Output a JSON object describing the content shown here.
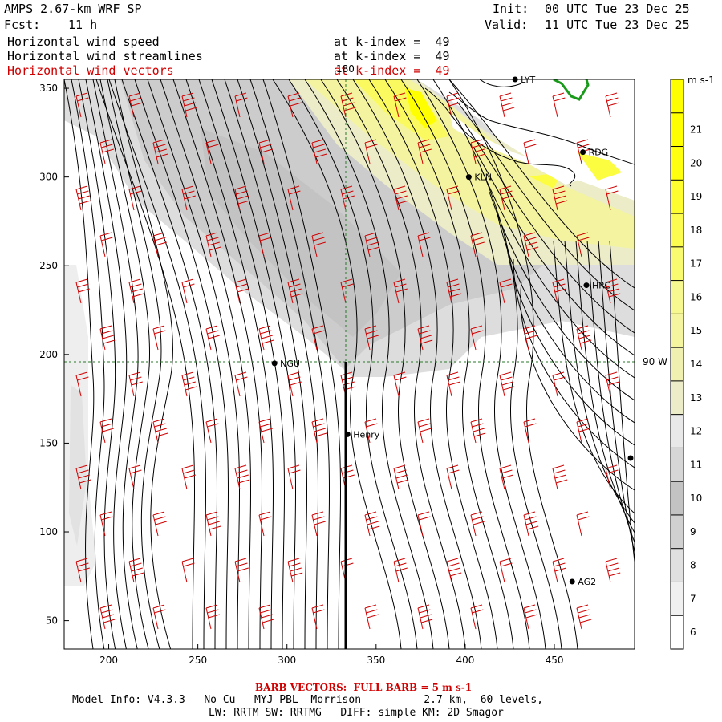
{
  "header": {
    "model": "AMPS 2.67-km WRF SP",
    "init_label": "Init:",
    "init_time": "00 UTC Tue 23 Dec 25",
    "fcst_label": "Fcst:",
    "fcst_value": "11 h",
    "valid_label": "Valid:",
    "valid_time": "11 UTC Tue 23 Dec 25"
  },
  "fields": [
    {
      "name": "Horizontal wind speed",
      "level": "at k-index =  49"
    },
    {
      "name": "Horizontal wind streamlines",
      "level": "at k-index =  49"
    },
    {
      "name": "Horizontal wind vectors",
      "level": "at k-index =  49"
    }
  ],
  "chart_data": {
    "type": "heatmap",
    "title": "Horizontal wind speed / streamlines / vectors at k-index 49",
    "x_ticks": [
      "200",
      "250",
      "300",
      "350",
      "400",
      "450"
    ],
    "y_ticks": [
      "50",
      "100",
      "150",
      "200",
      "250",
      "300",
      "350"
    ],
    "xlim": [
      175,
      495
    ],
    "ylim": [
      34,
      355
    ],
    "grid_lines": {
      "vertical_label": "180",
      "vertical_x": 335,
      "horizontal_label": "90 W",
      "horizontal_y": 195
    },
    "stations": [
      {
        "name": "NGU",
        "x": 293,
        "y": 195
      },
      {
        "name": "KLN",
        "x": 402,
        "y": 300
      },
      {
        "name": "RDG",
        "x": 466,
        "y": 314
      },
      {
        "name": "HRC",
        "x": 468,
        "y": 239
      },
      {
        "name": "Henry",
        "x": 334,
        "y": 155
      },
      {
        "name": "AG2",
        "x": 460,
        "y": 72
      },
      {
        "name": "LYT",
        "x": 428,
        "y": 355
      }
    ],
    "colorbar": {
      "units": "m s-1",
      "levels": [
        "6",
        "7",
        "8",
        "9",
        "10",
        "11",
        "12",
        "13",
        "14",
        "15",
        "16",
        "17",
        "18",
        "19",
        "20",
        "21"
      ],
      "colors": [
        "#ffffff",
        "#f0f0f0",
        "#e0e0e0",
        "#d0d0d0",
        "#c3c3c3",
        "#d6d6d6",
        "#e8e8e8",
        "#ececc8",
        "#f0f0b0",
        "#f5f5a0",
        "#f8f890",
        "#fafa70",
        "#fcfc50",
        "#fdfd30",
        "#ffff10",
        "#ffff00"
      ]
    },
    "barb_note": "BARB VECTORS:  FULL BARB = 5 m s-1"
  },
  "colors": {
    "barb": "#d10000",
    "grid": "#2a7a2a",
    "coast": "#1a9a1a"
  },
  "footer": {
    "line1": "Model Info: V4.3.3   No Cu   MYJ PBL  Morrison          2.7 km,  60 levels,",
    "line2": "LW: RRTM SW: RRTMG   DIFF: simple KM: 2D Smagor"
  }
}
